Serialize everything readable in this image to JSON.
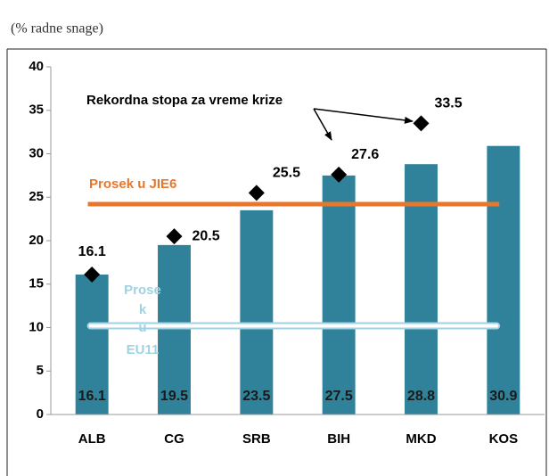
{
  "chart_data": {
    "type": "bar",
    "subtitle": "(% radne snage)",
    "categories": [
      "ALB",
      "CG",
      "SRB",
      "BIH",
      "MKD",
      "KOS"
    ],
    "values": [
      16.1,
      19.5,
      23.5,
      27.5,
      28.8,
      30.9
    ],
    "color": "#2f8299",
    "markers": {
      "values": [
        16.1,
        20.5,
        25.5,
        27.6,
        33.5,
        null
      ],
      "color": "#000000"
    },
    "reference_lines": [
      {
        "label": "Prosek  u JIE6",
        "value": 24.2,
        "color": "#e8772e"
      },
      {
        "label_lines": [
          "Prose",
          "k",
          "u",
          "EU11"
        ],
        "value": 10.2,
        "color": "#9fd3e3"
      }
    ],
    "annotation": "Rekordna stopa za vreme krize",
    "ylim": [
      0,
      40
    ],
    "yticks": [
      0,
      5,
      10,
      15,
      20,
      25,
      30,
      35,
      40
    ],
    "grid": false
  }
}
